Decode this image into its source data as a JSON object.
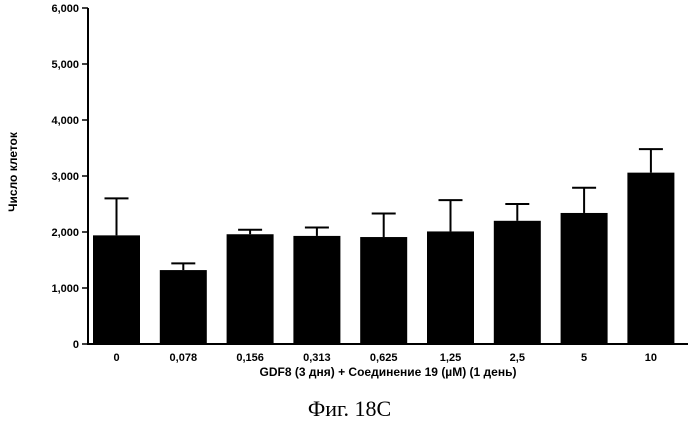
{
  "chart_data": {
    "type": "bar",
    "title": "",
    "xlabel": "GDF8 (3 дня)  + Соединение 19 (µM) (1 день)",
    "ylabel": "Число клеток",
    "categories": [
      "0",
      "0,078",
      "0,156",
      "0,313",
      "0,625",
      "1,25",
      "2,5",
      "5",
      "10"
    ],
    "values": [
      1940,
      1320,
      1960,
      1930,
      1910,
      2010,
      2200,
      2340,
      3060
    ],
    "errors": [
      660,
      120,
      80,
      150,
      420,
      560,
      300,
      450,
      420
    ],
    "ylim": [
      0,
      6000
    ],
    "yticks": [
      0,
      1000,
      2000,
      3000,
      4000,
      5000,
      6000
    ],
    "ytick_labels": [
      "0",
      "1,000",
      "2,000",
      "3,000",
      "4,000",
      "5,000",
      "6,000"
    ],
    "bar_color": "#000000",
    "grid": false,
    "legend": "none"
  },
  "caption": "Фиг. 18C"
}
